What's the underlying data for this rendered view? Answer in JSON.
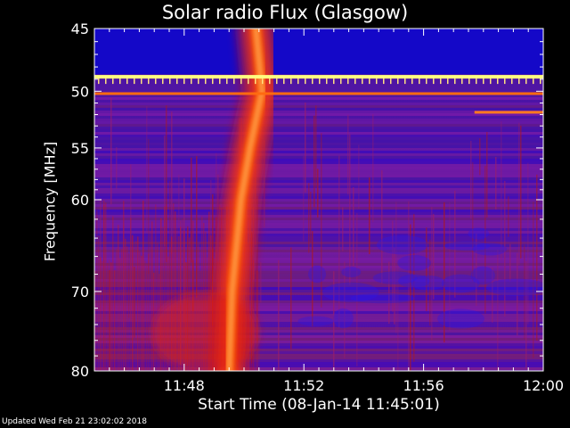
{
  "footer_text": "Updated Wed Feb 21 23:02:02 2018",
  "chart_data": {
    "type": "heatmap",
    "title": "Solar radio Flux (Glasgow)",
    "xlabel": "Start Time (08-Jan-14 11:45:01)",
    "ylabel": "Frequency [MHz]",
    "x_ticks": [
      {
        "label": "11:48",
        "minute": 3
      },
      {
        "label": "11:52",
        "minute": 7
      },
      {
        "label": "11:56",
        "minute": 11
      },
      {
        "label": "12:00",
        "minute": 15
      }
    ],
    "xlim_minutes": [
      0,
      15
    ],
    "y_ticks": [
      45,
      50,
      55,
      60,
      70,
      80
    ],
    "ylim_mhz": [
      45,
      80
    ],
    "y_scale": "log",
    "y_direction": "increasing downward",
    "colormap": [
      "#00006e",
      "#2a00d8",
      "#8c1cb0",
      "#d21810",
      "#ff7000",
      "#ffff80"
    ],
    "features": {
      "burst_type": "drifting radio burst",
      "drift_path": [
        {
          "minute": 5.4,
          "mhz": 45
        },
        {
          "minute": 5.6,
          "mhz": 50
        },
        {
          "minute": 5.2,
          "mhz": 55
        },
        {
          "minute": 4.9,
          "mhz": 60
        },
        {
          "minute": 4.6,
          "mhz": 70
        },
        {
          "minute": 4.5,
          "mhz": 80
        }
      ],
      "interference_line_mhz": 48.8,
      "interference_line_2_mhz": 50.2,
      "short_line": {
        "mhz": 51.8,
        "minutes": [
          12.7,
          15
        ]
      }
    }
  }
}
